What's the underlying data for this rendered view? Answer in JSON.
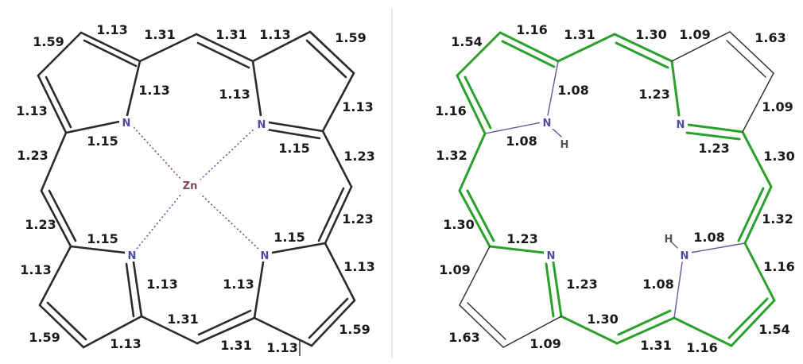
{
  "colors": {
    "dark": "#2b2b2b",
    "green": "#2ca02c",
    "nitrogen": "#4c4ca4",
    "zinc": "#7a4a4a",
    "hydrogen": "#555555",
    "divider": "#d0d0d0"
  },
  "left_panel": {
    "atoms": {
      "zn": "Zn",
      "n": "N"
    },
    "labels": [
      "1.13",
      "1.31",
      "1.31",
      "1.13",
      "1.59",
      "1.59",
      "1.13",
      "1.13",
      "1.13",
      "1.13",
      "1.15",
      "1.15",
      "1.23",
      "1.23",
      "1.23",
      "1.23",
      "1.15",
      "1.15",
      "1.13",
      "1.13",
      "1.13",
      "1.13",
      "1.59",
      "1.59",
      "1.13",
      "1.31",
      "1.31",
      "1.13"
    ]
  },
  "right_panel": {
    "atoms": {
      "n": "N",
      "h": "H"
    },
    "labels": [
      "1.16",
      "1.31",
      "1.30",
      "1.09",
      "1.54",
      "1.63",
      "1.08",
      "1.23",
      "1.16",
      "1.09",
      "1.08",
      "1.23",
      "1.32",
      "1.30",
      "1.30",
      "1.32",
      "1.23",
      "1.08",
      "1.09",
      "1.16",
      "1.23",
      "1.08",
      "1.63",
      "1.54",
      "1.30",
      "1.31",
      "1.09",
      "1.16"
    ]
  }
}
